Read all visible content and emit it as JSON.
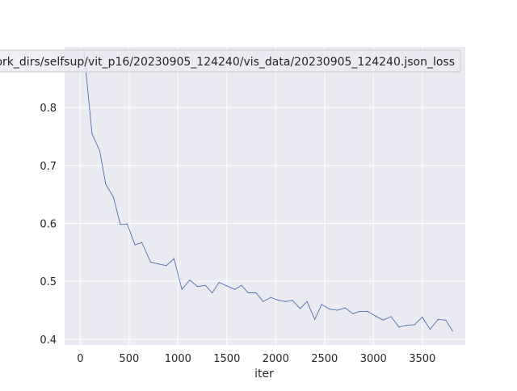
{
  "chart_data": {
    "type": "line",
    "title": "",
    "xlabel": "iter",
    "ylabel": "",
    "xlim": [
      -160,
      3940
    ],
    "ylim": [
      0.39,
      0.905
    ],
    "xticks": [
      0,
      500,
      1000,
      1500,
      2000,
      2500,
      3000,
      3500
    ],
    "xtick_labels": [
      "0",
      "500",
      "1000",
      "1500",
      "2000",
      "2500",
      "3000",
      "3500"
    ],
    "yticks": [
      0.4,
      0.5,
      0.6,
      0.7,
      0.8
    ],
    "ytick_labels": [
      "0.4",
      "0.5",
      "0.6",
      "0.7",
      "0.8"
    ],
    "grid": true,
    "legend_position": "top-center",
    "legend_label": "ork_dirs/selfsup/vit_p16/20230905_124240/vis_data/20230905_124240.json_loss",
    "background_color": "#eaeaf2",
    "line_color": "#4c72b0",
    "series": [
      {
        "name": "ork_dirs/selfsup/vit_p16/20230905_124240/vis_data/20230905_124240.json_loss",
        "x": [
          40,
          120,
          200,
          260,
          340,
          410,
          480,
          560,
          630,
          720,
          800,
          880,
          960,
          1040,
          1120,
          1200,
          1280,
          1350,
          1420,
          1500,
          1580,
          1650,
          1720,
          1800,
          1870,
          1950,
          2030,
          2100,
          2170,
          2250,
          2320,
          2400,
          2470,
          2550,
          2630,
          2710,
          2790,
          2860,
          2940,
          3020,
          3100,
          3180,
          3260,
          3340,
          3420,
          3500,
          3580,
          3660,
          3740,
          3810
        ],
        "y": [
          0.895,
          0.755,
          0.725,
          0.668,
          0.645,
          0.598,
          0.599,
          0.563,
          0.567,
          0.533,
          0.53,
          0.527,
          0.539,
          0.486,
          0.502,
          0.491,
          0.493,
          0.48,
          0.498,
          0.492,
          0.486,
          0.493,
          0.48,
          0.48,
          0.465,
          0.472,
          0.467,
          0.465,
          0.467,
          0.453,
          0.465,
          0.434,
          0.46,
          0.452,
          0.45,
          0.454,
          0.444,
          0.448,
          0.448,
          0.44,
          0.433,
          0.439,
          0.421,
          0.424,
          0.425,
          0.438,
          0.417,
          0.434,
          0.433,
          0.414
        ]
      }
    ]
  }
}
